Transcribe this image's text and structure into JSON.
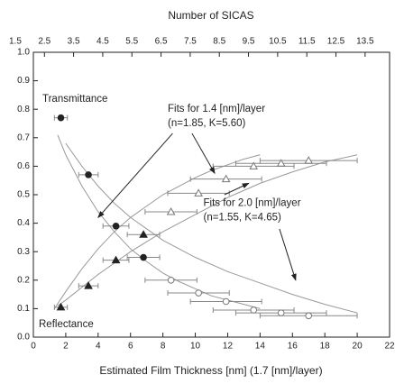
{
  "chart_data": {
    "type": "scatter",
    "x2label": "Number of SICAS",
    "xlabel": "Estimated Film Thickness [nm] (1.7 [nm]/layer)",
    "xlim": [
      0,
      22
    ],
    "xticks": [
      0,
      2,
      4,
      6,
      8,
      10,
      12,
      14,
      16,
      18,
      20,
      22
    ],
    "x2lim": [
      2.12,
      14.34
    ],
    "x2ticks": [
      1.5,
      2.5,
      3.5,
      4.5,
      5.5,
      6.5,
      7.5,
      8.5,
      9.5,
      10.5,
      11.5,
      12.5,
      13.5
    ],
    "ylim": [
      0,
      1
    ],
    "yticks": [
      {
        "value": 0,
        "label": "0.0"
      },
      0.1,
      0.2,
      0.3,
      0.4,
      0.5,
      0.6,
      0.7,
      0.8,
      0.9,
      {
        "value": 1,
        "label": "1.0"
      }
    ],
    "color": "#222222",
    "errcolor": "#888888",
    "fitcolor": "#999999",
    "series": [
      {
        "marker": "circle",
        "filled": true,
        "x": [
          1.7,
          3.4,
          5.1,
          6.8
        ],
        "values": [
          0.77,
          0.57,
          0.39,
          0.28
        ],
        "xerr": [
          0.4,
          0.6,
          0.8,
          1.0
        ]
      },
      {
        "marker": "circle",
        "filled": false,
        "x": [
          8.5,
          10.2,
          11.9,
          13.6,
          15.3,
          17
        ],
        "values": [
          0.2,
          0.155,
          0.125,
          0.095,
          0.085,
          0.075
        ],
        "xerr": [
          1.6,
          1.9,
          2.2,
          2.5,
          2.8,
          3.0
        ]
      },
      {
        "marker": "triangle",
        "filled": true,
        "x": [
          1.7,
          3.4,
          5.1,
          6.8
        ],
        "values": [
          0.105,
          0.18,
          0.27,
          0.36
        ],
        "xerr": [
          0.4,
          0.6,
          0.8,
          1.0
        ]
      },
      {
        "marker": "triangle",
        "filled": false,
        "x": [
          8.5,
          10.2,
          11.9,
          13.6,
          15.3,
          17
        ],
        "values": [
          0.44,
          0.505,
          0.555,
          0.6,
          0.61,
          0.62
        ],
        "xerr": [
          1.6,
          1.9,
          2.2,
          2.5,
          2.8,
          3.0
        ]
      }
    ],
    "fits": [
      {
        "x": [
          1.5,
          2,
          3,
          4,
          5,
          6,
          7,
          8,
          9,
          10,
          11,
          12,
          13,
          14
        ],
        "values": [
          0.71,
          0.64,
          0.53,
          0.44,
          0.37,
          0.31,
          0.265,
          0.225,
          0.195,
          0.17,
          0.145,
          0.13,
          0.115,
          0.1
        ]
      },
      {
        "x": [
          2,
          3,
          4,
          5,
          6,
          8,
          10,
          12,
          14,
          16,
          18,
          20
        ],
        "values": [
          0.68,
          0.6,
          0.53,
          0.47,
          0.42,
          0.34,
          0.28,
          0.23,
          0.19,
          0.15,
          0.115,
          0.085
        ]
      },
      {
        "x": [
          1.3,
          2,
          3,
          4,
          5,
          6,
          7,
          8,
          9,
          10,
          11,
          12,
          13,
          14
        ],
        "values": [
          0.1,
          0.16,
          0.24,
          0.31,
          0.37,
          0.42,
          0.46,
          0.5,
          0.53,
          0.56,
          0.585,
          0.605,
          0.625,
          0.64
        ]
      },
      {
        "x": [
          1.5,
          2,
          4,
          6,
          8,
          10,
          12,
          14,
          16,
          18,
          20
        ],
        "values": [
          0.11,
          0.13,
          0.22,
          0.3,
          0.37,
          0.43,
          0.49,
          0.54,
          0.58,
          0.615,
          0.64
        ]
      }
    ],
    "annotations": [
      "Transmittance",
      "Reflectance",
      "Fits for 1.4 [nm]/layer",
      "(n=1.85, K=5.60)",
      "Fits for 2.0 [nm]/layer",
      "(n=1.55, K=4.65)"
    ]
  }
}
